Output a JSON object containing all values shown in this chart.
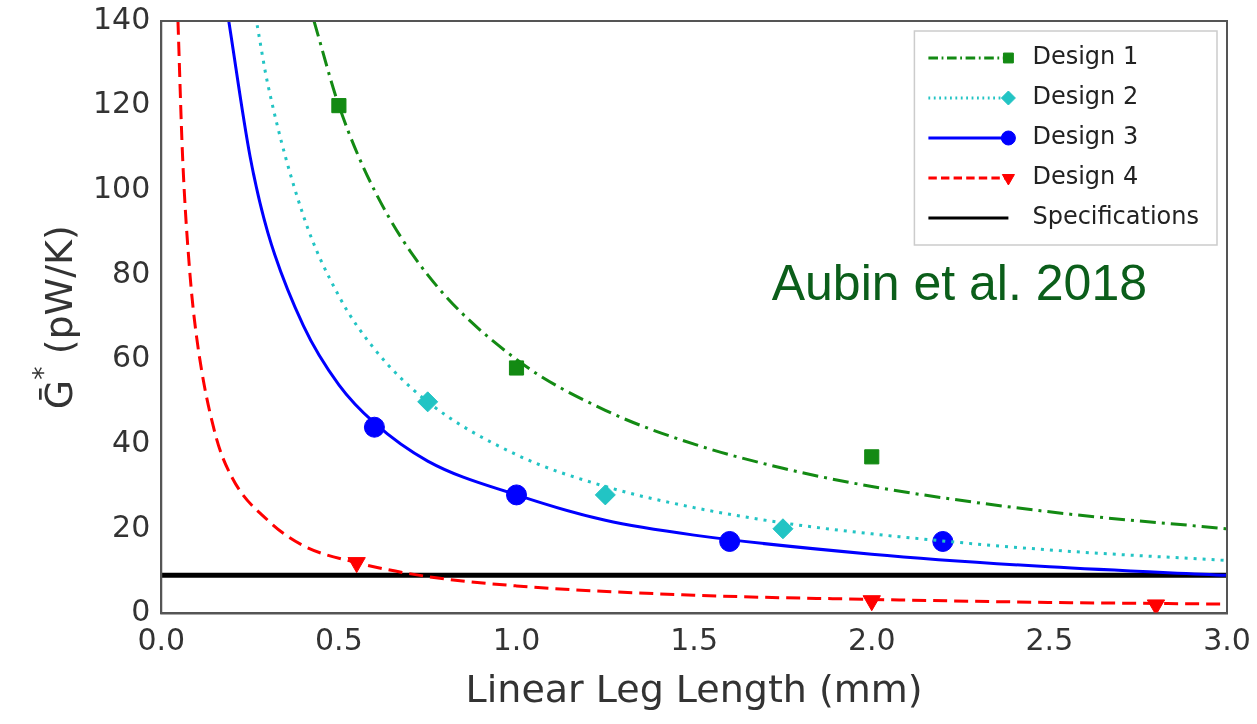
{
  "chart_data": {
    "type": "line",
    "xlabel": "Linear Leg Length (mm)",
    "ylabel": "Ḡ$^{*}$ (pW/K)",
    "xlim": [
      0,
      3
    ],
    "ylim": [
      0,
      140
    ],
    "xticks": [
      {
        "value": 0,
        "label": "0.0"
      },
      {
        "value": 0.5,
        "label": "0.5"
      },
      {
        "value": 1,
        "label": "1.0"
      },
      {
        "value": 1.5,
        "label": "1.5"
      },
      {
        "value": 2,
        "label": "2.0"
      },
      {
        "value": 2.5,
        "label": "2.5"
      },
      {
        "value": 3,
        "label": "3.0"
      }
    ],
    "yticks": [
      0,
      20,
      40,
      60,
      80,
      100,
      120,
      140
    ],
    "grid": false,
    "legend": "top right",
    "annotations": [
      "Aubin et al. 2018"
    ],
    "ref_lines": [
      {
        "axis": "y",
        "value": 9,
        "label": "Specifications",
        "color": "#000000"
      }
    ],
    "series": [
      {
        "name": "Design 1",
        "type": "line",
        "line_style": "dashdot",
        "color": "#138a13",
        "x": [
          0.43,
          0.5,
          0.6,
          0.75,
          1,
          1.25,
          1.5,
          1.75,
          2,
          2.5,
          3
        ],
        "values": [
          140,
          120,
          100,
          80,
          60,
          48,
          40,
          34.3,
          30,
          24,
          20
        ]
      },
      {
        "type": "scatter",
        "marker": "square",
        "color": "#138a13",
        "x": [
          0.5,
          1,
          2
        ],
        "values": [
          120,
          58,
          37
        ]
      },
      {
        "name": "Design 2",
        "type": "line",
        "line_style": "dotted",
        "color": "#22c4c4",
        "x": [
          0.27,
          0.3,
          0.4,
          0.5,
          0.6,
          0.75,
          1,
          1.25,
          1.5,
          1.75,
          2,
          2.5,
          3
        ],
        "values": [
          139,
          125,
          94,
          75,
          62.5,
          50,
          37.5,
          30,
          25,
          21.4,
          18.8,
          15,
          12.5
        ]
      },
      {
        "type": "scatter",
        "marker": "diamond",
        "color": "#22c4c4",
        "x": [
          0.75,
          1.25,
          1.75
        ],
        "values": [
          50,
          28,
          20
        ]
      },
      {
        "name": "Design 3",
        "type": "line",
        "line_style": "solid",
        "color": "#0000ff",
        "x": [
          0.19,
          0.25,
          0.3,
          0.4,
          0.5,
          0.6,
          0.75,
          1,
          1.25,
          1.5,
          2,
          2.5,
          3
        ],
        "values": [
          140,
          108,
          90,
          68,
          54,
          45,
          36,
          28,
          22,
          18.5,
          14,
          11,
          9
        ]
      },
      {
        "type": "scatter",
        "marker": "circle",
        "color": "#0000ff",
        "x": [
          0.6,
          1,
          1.6,
          2.2
        ],
        "values": [
          44,
          28,
          17,
          17
        ]
      },
      {
        "name": "Design 4",
        "type": "line",
        "line_style": "dashed",
        "color": "#ff0000",
        "x": [
          0.047,
          0.06,
          0.08,
          0.1,
          0.15,
          0.2,
          0.3,
          0.4,
          0.55,
          0.75,
          1,
          1.5,
          2,
          2.5,
          3
        ],
        "values": [
          140,
          108,
          81,
          65,
          43,
          32,
          22,
          16,
          12,
          8.7,
          6.5,
          4.3,
          3.3,
          2.6,
          2.2
        ]
      },
      {
        "type": "scatter",
        "marker": "triangle",
        "color": "#ff0000",
        "x": [
          0.55,
          2,
          2.8
        ],
        "values": [
          12,
          3,
          2
        ]
      }
    ]
  }
}
